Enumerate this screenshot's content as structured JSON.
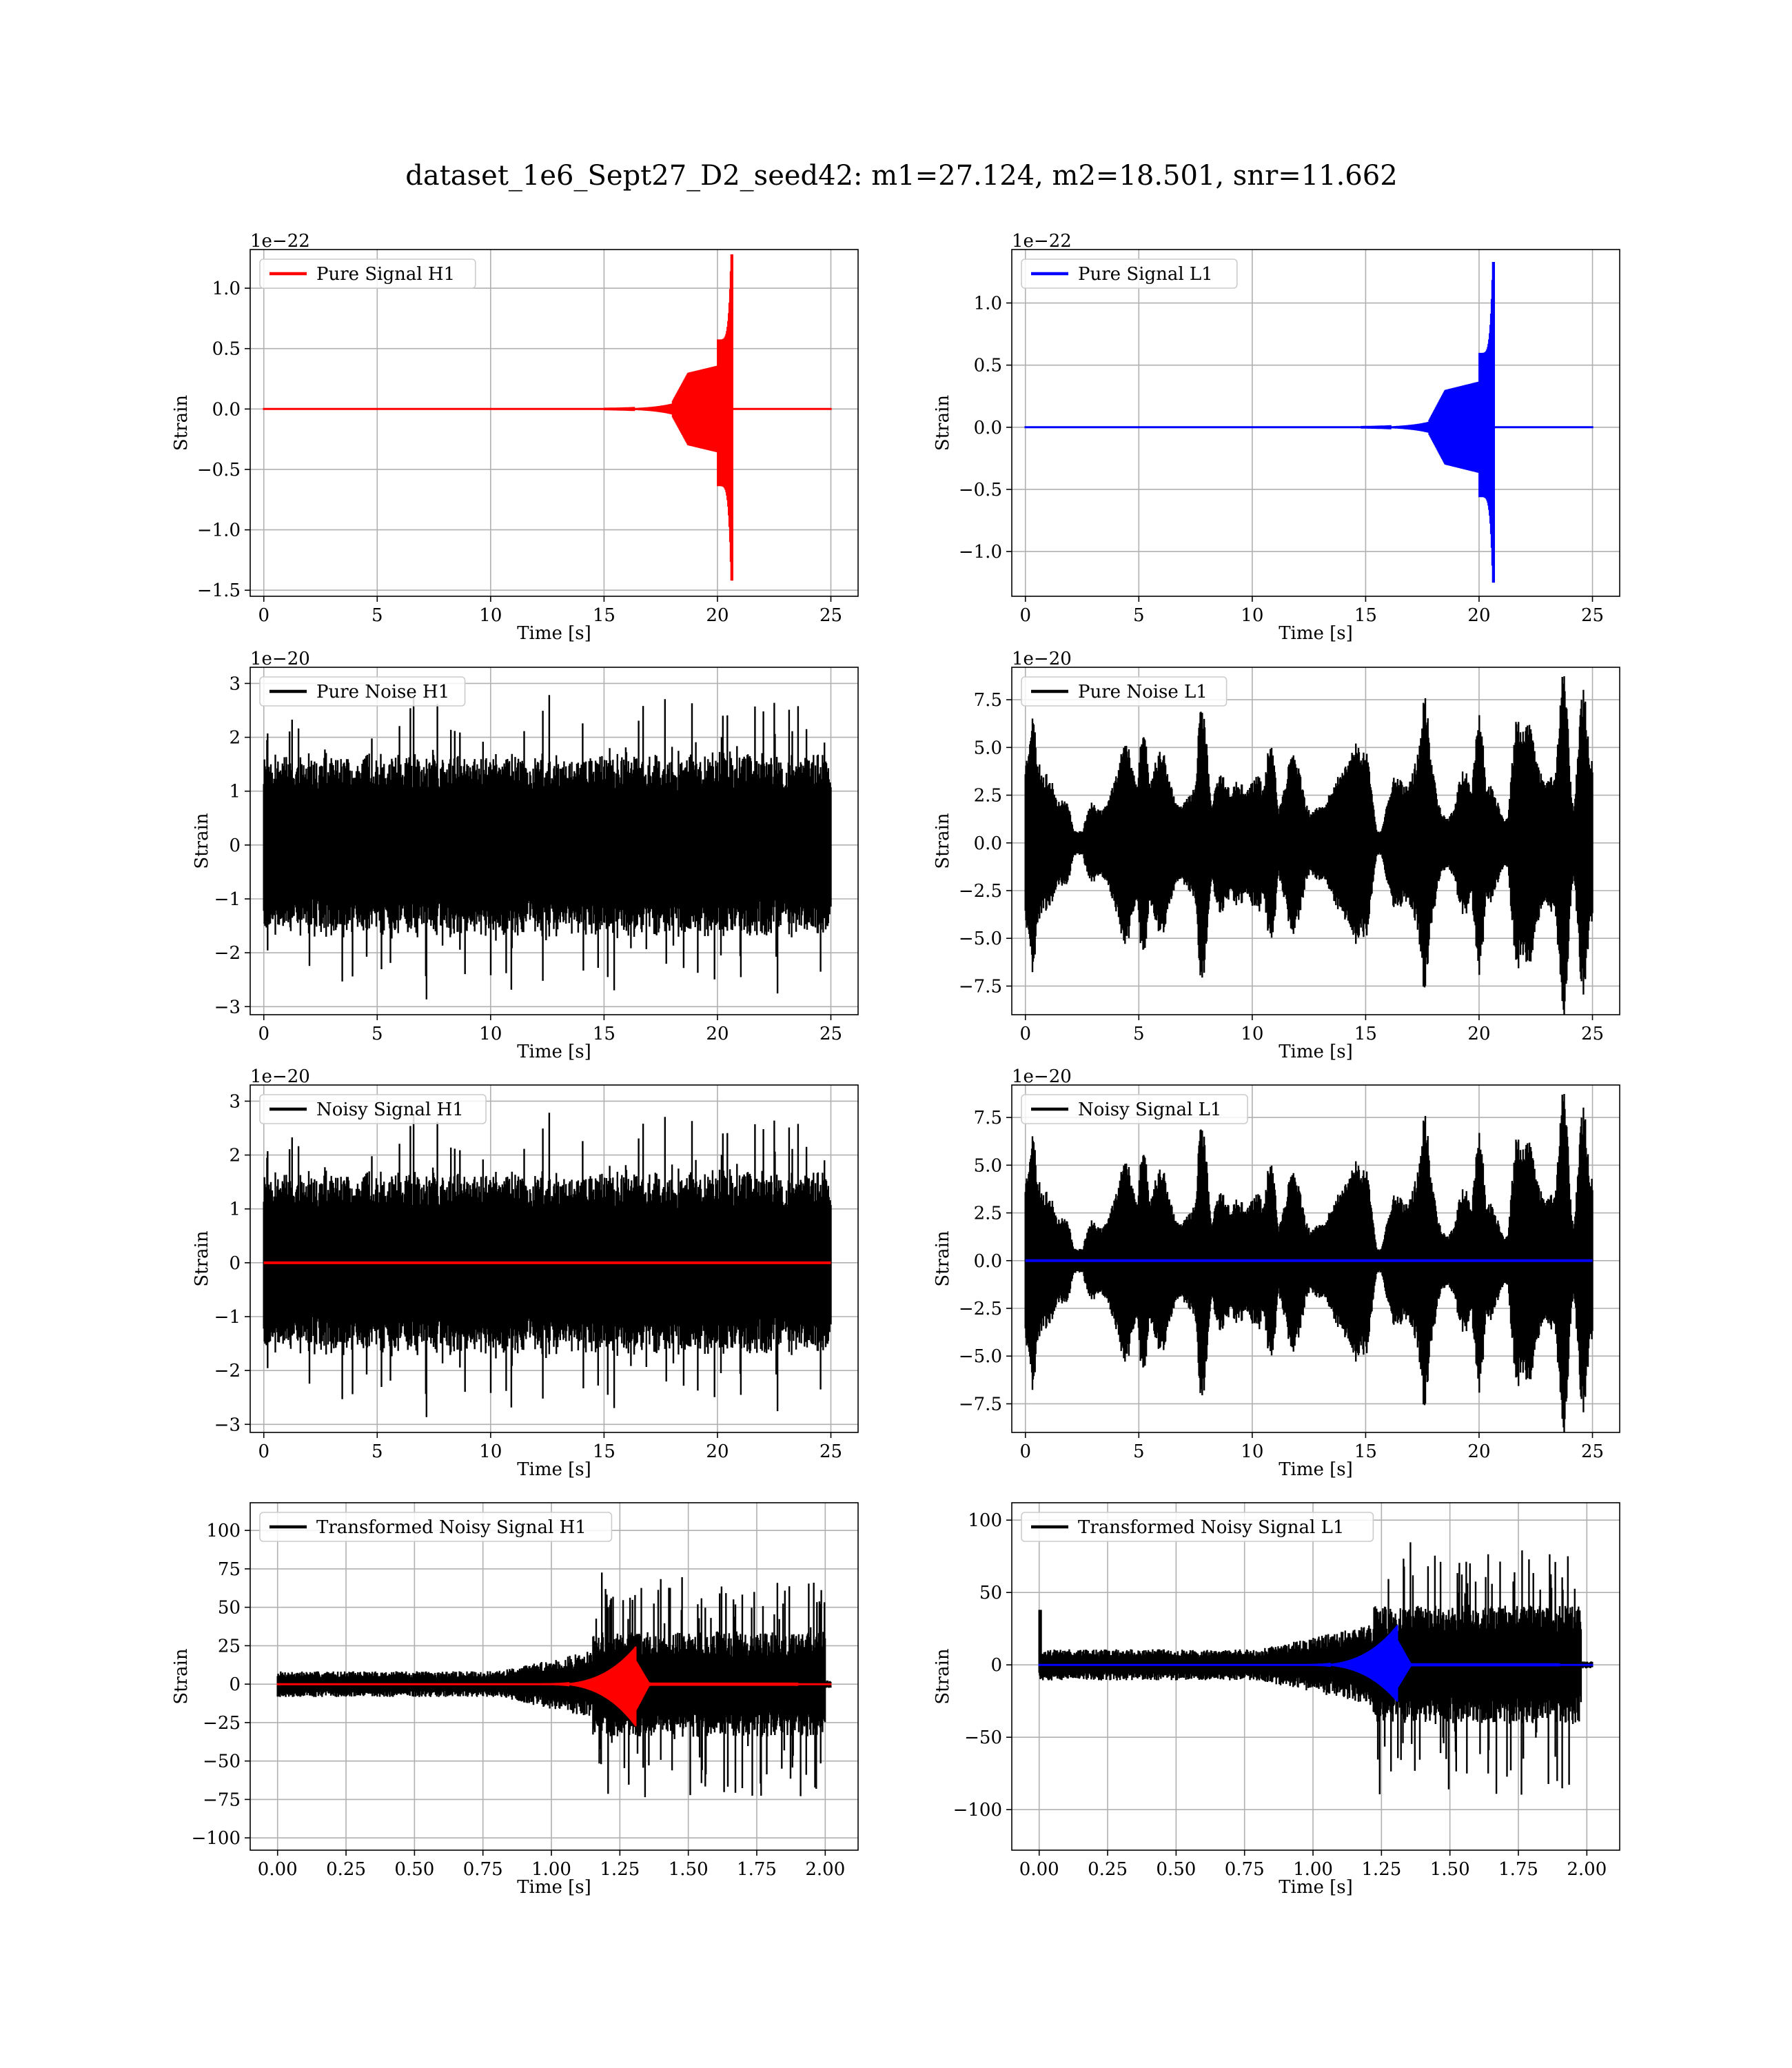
{
  "figure": {
    "title": "dataset_1e6_Sept27_D2_seed42: m1=27.124, m2=18.501, snr=11.662"
  },
  "colors": {
    "h1_signal": "#ff0000",
    "l1_signal": "#0000ff",
    "noise": "#000000",
    "grid": "#b0b0b0"
  },
  "chart_data": [
    {
      "id": "pure-signal-h1",
      "type": "line",
      "xlabel": "Time [s]",
      "ylabel": "Strain",
      "offset_text": "1e−22",
      "xlim": [
        -0.6,
        26.2
      ],
      "ylim": [
        -1.55,
        1.32
      ],
      "xticks": [
        0,
        5,
        10,
        15,
        20,
        25
      ],
      "xtick_labels": [
        "0",
        "5",
        "10",
        "15",
        "20",
        "25"
      ],
      "yticks": [
        -1.5,
        -1.0,
        -0.5,
        0.0,
        0.5,
        1.0
      ],
      "ytick_labels": [
        "−1.5",
        "−1.0",
        "−0.5",
        "0.0",
        "0.5",
        "1.0"
      ],
      "series": [
        {
          "name": "Pure Signal H1",
          "color": "#ff0000",
          "kind": "chirp",
          "t_start": 0,
          "t_end": 25,
          "t_merge": 20.6,
          "amp_top": 1.28,
          "amp_bottom": -1.42,
          "amp_early": 0.3,
          "t_rise": 18.0
        }
      ],
      "legend": "upper-left"
    },
    {
      "id": "pure-signal-l1",
      "type": "line",
      "xlabel": "Time [s]",
      "ylabel": "Strain",
      "offset_text": "1e−22",
      "xlim": [
        -0.6,
        26.2
      ],
      "ylim": [
        -1.36,
        1.43
      ],
      "xticks": [
        0,
        5,
        10,
        15,
        20,
        25
      ],
      "xtick_labels": [
        "0",
        "5",
        "10",
        "15",
        "20",
        "25"
      ],
      "yticks": [
        -1.0,
        -0.5,
        0.0,
        0.5,
        1.0
      ],
      "ytick_labels": [
        "−1.0",
        "−0.5",
        "0.0",
        "0.5",
        "1.0"
      ],
      "series": [
        {
          "name": "Pure Signal L1",
          "color": "#0000ff",
          "kind": "chirp",
          "t_start": 0,
          "t_end": 25,
          "t_merge": 20.6,
          "amp_top": 1.33,
          "amp_bottom": -1.25,
          "amp_early": 0.3,
          "t_rise": 17.8
        }
      ],
      "legend": "upper-left"
    },
    {
      "id": "pure-noise-h1",
      "type": "line",
      "xlabel": "Time [s]",
      "ylabel": "Strain",
      "offset_text": "1e−20",
      "xlim": [
        -0.6,
        26.2
      ],
      "ylim": [
        -3.15,
        3.3
      ],
      "xticks": [
        0,
        5,
        10,
        15,
        20,
        25
      ],
      "xtick_labels": [
        "0",
        "5",
        "10",
        "15",
        "20",
        "25"
      ],
      "yticks": [
        -3,
        -2,
        -1,
        0,
        1,
        2,
        3
      ],
      "ytick_labels": [
        "−3",
        "−2",
        "−1",
        "0",
        "1",
        "2",
        "3"
      ],
      "series": [
        {
          "name": "Pure Noise H1",
          "color": "#000000",
          "kind": "noise",
          "t_start": 0,
          "t_end": 25,
          "base": 1.2,
          "peak": 2.7,
          "seed": 11
        }
      ],
      "legend": "upper-left"
    },
    {
      "id": "pure-noise-l1",
      "type": "line",
      "xlabel": "Time [s]",
      "ylabel": "Strain",
      "offset_text": "1e−20",
      "xlim": [
        -0.6,
        26.2
      ],
      "ylim": [
        -9.0,
        9.2
      ],
      "xticks": [
        0,
        5,
        10,
        15,
        20,
        25
      ],
      "xtick_labels": [
        "0",
        "5",
        "10",
        "15",
        "20",
        "25"
      ],
      "yticks": [
        -7.5,
        -5.0,
        -2.5,
        0.0,
        2.5,
        5.0,
        7.5
      ],
      "ytick_labels": [
        "−7.5",
        "−5.0",
        "−2.5",
        "0.0",
        "2.5",
        "5.0",
        "7.5"
      ],
      "series": [
        {
          "name": "Pure Noise L1",
          "color": "#000000",
          "kind": "modnoise",
          "t_start": 0,
          "t_end": 25,
          "seed": 23
        }
      ],
      "legend": "upper-left"
    },
    {
      "id": "noisy-signal-h1",
      "type": "line",
      "xlabel": "Time [s]",
      "ylabel": "Strain",
      "offset_text": "1e−20",
      "xlim": [
        -0.6,
        26.2
      ],
      "ylim": [
        -3.15,
        3.3
      ],
      "xticks": [
        0,
        5,
        10,
        15,
        20,
        25
      ],
      "xtick_labels": [
        "0",
        "5",
        "10",
        "15",
        "20",
        "25"
      ],
      "yticks": [
        -3,
        -2,
        -1,
        0,
        1,
        2,
        3
      ],
      "ytick_labels": [
        "−3",
        "−2",
        "−1",
        "0",
        "1",
        "2",
        "3"
      ],
      "series": [
        {
          "name": "Noisy Signal H1",
          "color": "#000000",
          "kind": "noise",
          "t_start": 0,
          "t_end": 25,
          "base": 1.2,
          "peak": 2.7,
          "seed": 11
        },
        {
          "color": "#ff0000",
          "kind": "flat",
          "t_start": 0,
          "t_end": 25
        }
      ],
      "legend": "upper-left"
    },
    {
      "id": "noisy-signal-l1",
      "type": "line",
      "xlabel": "Time [s]",
      "ylabel": "Strain",
      "offset_text": "1e−20",
      "xlim": [
        -0.6,
        26.2
      ],
      "ylim": [
        -9.0,
        9.2
      ],
      "xticks": [
        0,
        5,
        10,
        15,
        20,
        25
      ],
      "xtick_labels": [
        "0",
        "5",
        "10",
        "15",
        "20",
        "25"
      ],
      "yticks": [
        -7.5,
        -5.0,
        -2.5,
        0.0,
        2.5,
        5.0,
        7.5
      ],
      "ytick_labels": [
        "−7.5",
        "−5.0",
        "−2.5",
        "0.0",
        "2.5",
        "5.0",
        "7.5"
      ],
      "series": [
        {
          "name": "Noisy Signal L1",
          "color": "#000000",
          "kind": "modnoise",
          "t_start": 0,
          "t_end": 25,
          "seed": 23
        },
        {
          "color": "#0000ff",
          "kind": "flat",
          "t_start": 0,
          "t_end": 25
        }
      ],
      "legend": "upper-left"
    },
    {
      "id": "transformed-h1",
      "type": "line",
      "xlabel": "Time [s]",
      "ylabel": "Strain",
      "offset_text": "",
      "xlim": [
        -0.1,
        2.12
      ],
      "ylim": [
        -108,
        118
      ],
      "xticks": [
        0,
        0.25,
        0.5,
        0.75,
        1.0,
        1.25,
        1.5,
        1.75,
        2.0
      ],
      "xtick_labels": [
        "0.00",
        "0.25",
        "0.50",
        "0.75",
        "1.00",
        "1.25",
        "1.50",
        "1.75",
        "2.00"
      ],
      "yticks": [
        -100,
        -75,
        -50,
        -25,
        0,
        25,
        50,
        75,
        100
      ],
      "ytick_labels": [
        "−100",
        "−75",
        "−50",
        "−25",
        "0",
        "25",
        "50",
        "75",
        "100"
      ],
      "series": [
        {
          "name": "Transformed Noisy Signal H1",
          "color": "#000000",
          "kind": "whitened",
          "t_start": 0,
          "t_end": 2.02,
          "seed": 7,
          "lvl_early": 7,
          "t_grow": 0.8,
          "lvl_late": 52,
          "t_late": 1.15,
          "t_end_noise": 2.0
        },
        {
          "color": "#ff0000",
          "kind": "wchirp",
          "t_start": 0,
          "t_end": 2.02,
          "t_merge": 1.31,
          "amp_top": 25,
          "amp_bottom": -28
        }
      ],
      "legend": "upper-left"
    },
    {
      "id": "transformed-l1",
      "type": "line",
      "xlabel": "Time [s]",
      "ylabel": "Strain",
      "offset_text": "",
      "xlim": [
        -0.1,
        2.12
      ],
      "ylim": [
        -128,
        112
      ],
      "xticks": [
        0,
        0.25,
        0.5,
        0.75,
        1.0,
        1.25,
        1.5,
        1.75,
        2.0
      ],
      "xtick_labels": [
        "0.00",
        "0.25",
        "0.50",
        "0.75",
        "1.00",
        "1.25",
        "1.50",
        "1.75",
        "2.00"
      ],
      "yticks": [
        -100,
        -50,
        0,
        50,
        100
      ],
      "ytick_labels": [
        "−100",
        "−50",
        "0",
        "50",
        "100"
      ],
      "series": [
        {
          "name": "Transformed Noisy Signal L1",
          "color": "#000000",
          "kind": "whitened",
          "t_start": 0,
          "t_end": 2.02,
          "seed": 19,
          "lvl_early": 9,
          "t_grow": 0.8,
          "lvl_late": 62,
          "t_late": 1.22,
          "t_end_noise": 1.98
        },
        {
          "color": "#0000ff",
          "kind": "wchirp",
          "t_start": 0,
          "t_end": 2.02,
          "t_merge": 1.31,
          "amp_top": 28,
          "amp_bottom": -26
        }
      ],
      "legend": "upper-left"
    }
  ]
}
